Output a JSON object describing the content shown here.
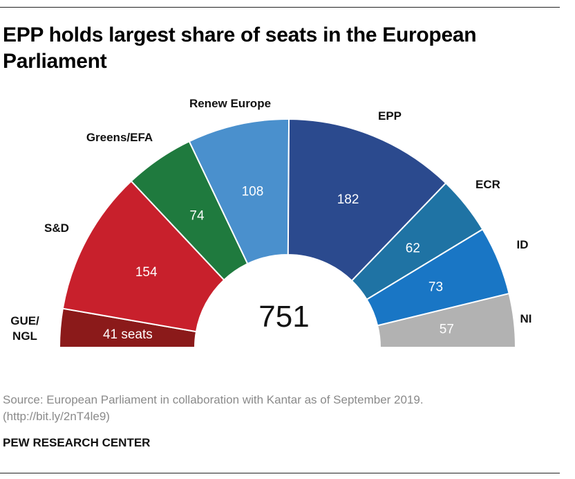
{
  "title": "EPP holds largest share of seats in the European Parliament",
  "source_line_1": "Source: European Parliament in collaboration with Kantar as of September 2019.",
  "source_line_2": "(http://bit.ly/2nT4le9)",
  "brand": "PEW RESEARCH CENTER",
  "colors": {
    "GUE/NGL": "#8b1a1a",
    "S&D": "#c8202c",
    "Greens/EFA": "#1f7a3e",
    "Renew Europe": "#4a90cd",
    "EPP": "#2b4a8e",
    "ECR": "#1f73a4",
    "ID": "#1976c5",
    "NI": "#b2b2b2"
  },
  "chart_data": {
    "type": "parliament-semicircle",
    "total": 751,
    "total_label": "751",
    "groups": [
      {
        "name": "GUE/NGL",
        "label_lines": [
          "GUE/",
          "NGL"
        ],
        "seats": 41,
        "value_label": "41 seats"
      },
      {
        "name": "S&D",
        "label_lines": [
          "S&D"
        ],
        "seats": 154,
        "value_label": "154"
      },
      {
        "name": "Greens/EFA",
        "label_lines": [
          "Greens/EFA"
        ],
        "seats": 74,
        "value_label": "74"
      },
      {
        "name": "Renew Europe",
        "label_lines": [
          "Renew Europe"
        ],
        "seats": 108,
        "value_label": "108"
      },
      {
        "name": "EPP",
        "label_lines": [
          "EPP"
        ],
        "seats": 182,
        "value_label": "182"
      },
      {
        "name": "ECR",
        "label_lines": [
          "ECR"
        ],
        "seats": 62,
        "value_label": "62"
      },
      {
        "name": "ID",
        "label_lines": [
          "ID"
        ],
        "seats": 73,
        "value_label": "73"
      },
      {
        "name": "NI",
        "label_lines": [
          "NI"
        ],
        "seats": 57,
        "value_label": "57"
      }
    ]
  }
}
